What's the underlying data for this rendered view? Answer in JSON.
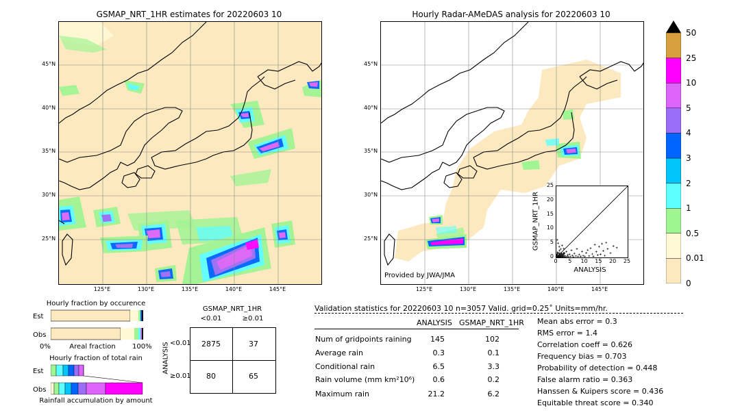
{
  "left_map": {
    "title": "GSMAP_NRT_1HR estimates for 20220603 10",
    "lat_labels": [
      "45°N",
      "40°N",
      "35°N",
      "30°N",
      "25°N"
    ],
    "lon_labels": [
      "125°E",
      "130°E",
      "135°E",
      "140°E",
      "145°E"
    ]
  },
  "right_map": {
    "title": "Hourly Radar-AMeDAS analysis for 20220603 10",
    "lat_labels": [
      "45°N",
      "40°N",
      "35°N",
      "30°N",
      "25°N"
    ],
    "lon_labels": [
      "125°E",
      "130°E",
      "135°E",
      "140°E",
      "145°E"
    ],
    "credit": "Provided by JWA/JMA"
  },
  "colorbar": {
    "levels": [
      "0",
      "0.01",
      "0.5",
      "1",
      "2",
      "3",
      "4",
      "5",
      "10",
      "25",
      "50"
    ],
    "colors": [
      "#fde9c0",
      "#fef9d4",
      "#a0f593",
      "#5dffff",
      "#00c4fa",
      "#0064ff",
      "#9b6cf6",
      "#dc64fa",
      "#ff00ff",
      "#d8a03c"
    ],
    "extend_color": "#000000"
  },
  "scatter": {
    "type": "scatter",
    "xlabel": "ANALYSIS",
    "ylabel": "GSMAP_NRT_1HR",
    "xlim": [
      0,
      25
    ],
    "ylim": [
      0,
      25
    ],
    "ticks": [
      "0",
      "5",
      "10",
      "15",
      "20",
      "25"
    ],
    "points": [
      [
        0.2,
        0.1
      ],
      [
        0.5,
        0.3
      ],
      [
        0.8,
        0.2
      ],
      [
        1.0,
        0.5
      ],
      [
        1.2,
        0.1
      ],
      [
        1.5,
        0.8
      ],
      [
        1.8,
        0.3
      ],
      [
        2.0,
        1.2
      ],
      [
        2.2,
        0.4
      ],
      [
        2.5,
        0.2
      ],
      [
        2.8,
        1.5
      ],
      [
        3.0,
        0.6
      ],
      [
        3.3,
        0.1
      ],
      [
        3.5,
        2.0
      ],
      [
        3.8,
        0.4
      ],
      [
        4.0,
        0.9
      ],
      [
        4.3,
        0.2
      ],
      [
        4.6,
        1.1
      ],
      [
        5.0,
        0.3
      ],
      [
        5.3,
        2.5
      ],
      [
        5.6,
        0.7
      ],
      [
        6.0,
        0.2
      ],
      [
        6.3,
        1.4
      ],
      [
        6.8,
        0.5
      ],
      [
        7.2,
        3.0
      ],
      [
        7.6,
        0.3
      ],
      [
        8.0,
        1.0
      ],
      [
        8.5,
        0.4
      ],
      [
        9.0,
        2.1
      ],
      [
        9.4,
        0.6
      ],
      [
        10.0,
        0.3
      ],
      [
        10.5,
        1.6
      ],
      [
        11.0,
        2.6
      ],
      [
        11.5,
        0.5
      ],
      [
        12.0,
        3.2
      ],
      [
        12.6,
        1.2
      ],
      [
        13.0,
        0.4
      ],
      [
        13.5,
        4.5
      ],
      [
        14.0,
        2.0
      ],
      [
        14.5,
        0.8
      ],
      [
        15.0,
        3.8
      ],
      [
        15.5,
        1.1
      ],
      [
        16.0,
        4.8
      ],
      [
        16.5,
        2.3
      ],
      [
        17.0,
        0.6
      ],
      [
        17.5,
        5.2
      ],
      [
        18.0,
        3.0
      ],
      [
        19.0,
        1.5
      ],
      [
        20.0,
        4.0
      ],
      [
        21.2,
        3.4
      ],
      [
        0.3,
        6.2
      ],
      [
        0.6,
        5.0
      ],
      [
        1.0,
        3.8
      ],
      [
        1.5,
        2.9
      ],
      [
        2.0,
        4.2
      ],
      [
        0.4,
        1.8
      ],
      [
        1.1,
        2.4
      ],
      [
        2.6,
        3.1
      ]
    ],
    "dense_near_zero": true
  },
  "occurrence": {
    "title": "Hourly fraction by occurence",
    "rows": [
      "Est",
      "Obs"
    ],
    "xaxis_left": "0%",
    "xaxis_mid": "Areal fraction",
    "xaxis_right": "100%"
  },
  "amount": {
    "title": "Hourly fraction of total rain",
    "rows": [
      "Est",
      "Obs"
    ],
    "xaxis_mid": "Rainfall accumulation by amount"
  },
  "contingency": {
    "col_title": "GSMAP_NRT_1HR",
    "col_lt": "<0.01",
    "col_ge": "≥0.01",
    "row_title": "ANALYSIS",
    "row_lt": "<0.01",
    "row_ge": "≥0.01",
    "cells": [
      "2875",
      "37",
      "80",
      "65"
    ]
  },
  "validation": {
    "header": "Validation statistics for 20220603 10  n=3057 Valid. grid=0.25˚ Units=mm/hr.",
    "col_analysis": "ANALYSIS",
    "col_gsmap": "GSMAP_NRT_1HR",
    "rows": [
      {
        "label": "Num of gridpoints raining",
        "analysis": "145",
        "gsmap": "102"
      },
      {
        "label": "Average rain",
        "analysis": "0.3",
        "gsmap": "0.1"
      },
      {
        "label": "Conditional rain",
        "analysis": "6.5",
        "gsmap": "3.3"
      },
      {
        "label": "Rain volume (mm km²10⁶)",
        "analysis": "0.6",
        "gsmap": "0.2"
      },
      {
        "label": "Maximum rain",
        "analysis": "21.2",
        "gsmap": "6.2"
      }
    ],
    "scores": [
      "Mean abs error =    0.3",
      "RMS error =    1.4",
      "Correlation coeff =  0.626",
      "Frequency bias =  0.703",
      "Probability of detection =  0.448",
      "False alarm ratio =  0.363",
      "Hanssen & Kuipers score =  0.436",
      "Equitable threat score =  0.340"
    ]
  }
}
